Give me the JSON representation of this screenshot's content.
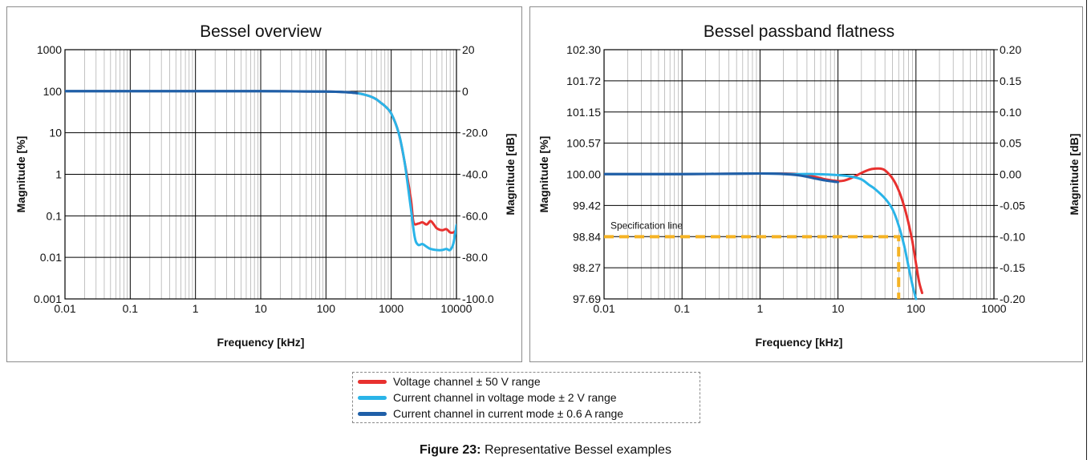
{
  "colors": {
    "voltage": "#e8312f",
    "current_voltage_mode": "#2ab4e8",
    "current_current_mode": "#1f5fa8",
    "spec": "#f5b324",
    "grid_major": "#000000",
    "grid_minor": "#9a9a9a"
  },
  "legend": [
    {
      "label": "Voltage channel ± 50 V range",
      "color": "#e8312f"
    },
    {
      "label": "Current channel in voltage mode ± 2 V range",
      "color": "#2ab4e8"
    },
    {
      "label": "Current channel in current mode ± 0.6 A range",
      "color": "#1f5fa8"
    }
  ],
  "caption": {
    "label": "Figure 23:",
    "text": " Representative Bessel examples"
  },
  "chart_data": [
    {
      "type": "line",
      "title": "Bessel overview",
      "xlabel": "Frequency [kHz]",
      "ylabel": "Magnitude [%]",
      "y2label": "Magnitude [dB]",
      "xscale": "log",
      "yscale": "log",
      "xlim": [
        0.01,
        10000
      ],
      "ylim": [
        0.001,
        1000
      ],
      "y2lim": [
        -100,
        20
      ],
      "grid": true,
      "xticks": [
        "0.01",
        "0.1",
        "1",
        "10",
        "100",
        "1000",
        "10000"
      ],
      "yticks": [
        "0.001",
        "0.01",
        "0.1",
        "1",
        "10",
        "100",
        "1000"
      ],
      "y2ticks": [
        "-100.0",
        "-80.0",
        "-60.0",
        "-40.0",
        "-20.0",
        "0",
        "20"
      ],
      "series": [
        {
          "name": "Voltage channel ± 50 V range",
          "color": "#e8312f",
          "x": [
            0.01,
            1,
            10,
            100,
            200,
            300,
            400,
            500,
            600,
            700,
            800,
            1000,
            1300,
            1600,
            2000,
            2200,
            2600,
            3000,
            3500,
            4000,
            4500,
            5000,
            6000,
            7000,
            8000,
            9000,
            10000
          ],
          "y": [
            100,
            100,
            100,
            98,
            95,
            90,
            82,
            73,
            63,
            52,
            44,
            29,
            10,
            2,
            0.25,
            0.07,
            0.065,
            0.07,
            0.062,
            0.075,
            0.062,
            0.05,
            0.045,
            0.048,
            0.04,
            0.04,
            0.045
          ]
        },
        {
          "name": "Current channel in voltage mode ± 2 V range",
          "color": "#2ab4e8",
          "x": [
            0.01,
            1,
            10,
            100,
            200,
            300,
            400,
            500,
            600,
            700,
            800,
            1000,
            1300,
            1600,
            2000,
            2300,
            2600,
            3000,
            3500,
            4000,
            5000,
            6000,
            7000,
            8000,
            9000,
            10000
          ],
          "y": [
            100,
            100,
            100,
            98,
            95,
            90,
            82,
            73,
            63,
            52,
            44,
            29,
            10,
            2,
            0.15,
            0.03,
            0.02,
            0.021,
            0.018,
            0.016,
            0.015,
            0.015,
            0.016,
            0.015,
            0.022,
            0.06
          ]
        },
        {
          "name": "Current channel in current mode ± 0.6 A range",
          "color": "#1f5fa8",
          "x": [
            0.01,
            1,
            10,
            100,
            200,
            300
          ],
          "y": [
            100,
            100,
            100,
            98,
            95,
            90
          ]
        }
      ]
    },
    {
      "type": "line",
      "title": "Bessel passband flatness",
      "xlabel": "Frequency [kHz]",
      "ylabel": "Magnitude [%]",
      "y2label": "Magnitude [dB]",
      "xscale": "log",
      "xlim": [
        0.01,
        1000
      ],
      "ylim": [
        97.69,
        102.3
      ],
      "y2lim": [
        -0.2,
        0.2
      ],
      "grid": true,
      "xticks": [
        "0.01",
        "0.1",
        "1",
        "10",
        "100",
        "1000"
      ],
      "yticks": [
        "97.69",
        "98.27",
        "98.84",
        "99.42",
        "100.00",
        "100.57",
        "101.15",
        "101.72",
        "102.30"
      ],
      "y2ticks": [
        "-0.20",
        "-0.15",
        "-0.10",
        "-0.05",
        "0.00",
        "0.05",
        "0.10",
        "0.15",
        "0.20"
      ],
      "annotation": "Specification line",
      "spec_line": {
        "y": 98.84,
        "x_end": 60
      },
      "series": [
        {
          "name": "Voltage channel ± 50 V range",
          "color": "#e8312f",
          "x": [
            0.01,
            0.1,
            1,
            2,
            3,
            5,
            7,
            10,
            12,
            15,
            20,
            25,
            30,
            35,
            40,
            50,
            60,
            70,
            80,
            90,
            100,
            110,
            120
          ],
          "y": [
            100,
            100,
            100.01,
            100.01,
            100.0,
            99.95,
            99.9,
            99.87,
            99.88,
            99.93,
            100.02,
            100.08,
            100.1,
            100.1,
            100.07,
            99.92,
            99.7,
            99.42,
            99.1,
            98.75,
            98.35,
            98.0,
            97.8
          ]
        },
        {
          "name": "Current channel in voltage mode ± 2 V range",
          "color": "#2ab4e8",
          "x": [
            0.01,
            0.1,
            1,
            3,
            5,
            10,
            15,
            20,
            25,
            30,
            40,
            50,
            60,
            70,
            80,
            90,
            100
          ],
          "y": [
            100,
            100,
            100.01,
            100.0,
            100.0,
            99.98,
            99.95,
            99.9,
            99.8,
            99.72,
            99.55,
            99.35,
            99.05,
            98.7,
            98.3,
            97.95,
            97.69
          ]
        },
        {
          "name": "Current channel in current mode ± 0.6 A range",
          "color": "#1f5fa8",
          "x": [
            0.01,
            0.1,
            1,
            2,
            3,
            4,
            5,
            7,
            10
          ],
          "y": [
            100,
            100,
            100.01,
            100.0,
            99.98,
            99.95,
            99.92,
            99.88,
            99.85
          ]
        }
      ]
    }
  ]
}
